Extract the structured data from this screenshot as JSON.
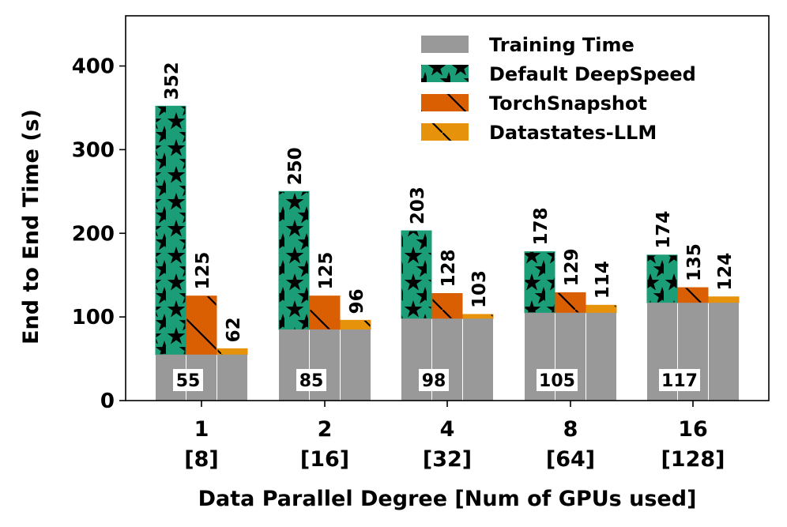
{
  "chart_data": {
    "type": "bar",
    "subtype": "grouped-stacked",
    "title": "",
    "xlabel": "Data Parallel Degree [Num of GPUs used]",
    "ylabel": "End to End Time (s)",
    "ylim": [
      0,
      460
    ],
    "yticks": [
      0,
      100,
      200,
      300,
      400
    ],
    "grid": false,
    "legend_position": "top-right",
    "categories": [
      {
        "degree": "1",
        "gpus": "[8]"
      },
      {
        "degree": "2",
        "gpus": "[16]"
      },
      {
        "degree": "4",
        "gpus": "[32]"
      },
      {
        "degree": "8",
        "gpus": "[64]"
      },
      {
        "degree": "16",
        "gpus": "[128]"
      }
    ],
    "training_time": [
      55,
      85,
      98,
      105,
      117
    ],
    "series": [
      {
        "name": "Default DeepSpeed",
        "color": "#1b9e77",
        "pattern": "stars",
        "totals": [
          352,
          250,
          203,
          178,
          174
        ]
      },
      {
        "name": "TorchSnapshot",
        "color": "#d95f02",
        "pattern": "backslash",
        "totals": [
          125,
          125,
          128,
          129,
          135
        ]
      },
      {
        "name": "Datastates-LLM",
        "color": "#e6920a",
        "pattern": "backslash",
        "totals": [
          62,
          96,
          103,
          114,
          124
        ]
      }
    ],
    "legend": [
      "Training Time",
      "Default DeepSpeed",
      "TorchSnapshot",
      "Datastates-LLM"
    ],
    "training_color": "#999999"
  }
}
